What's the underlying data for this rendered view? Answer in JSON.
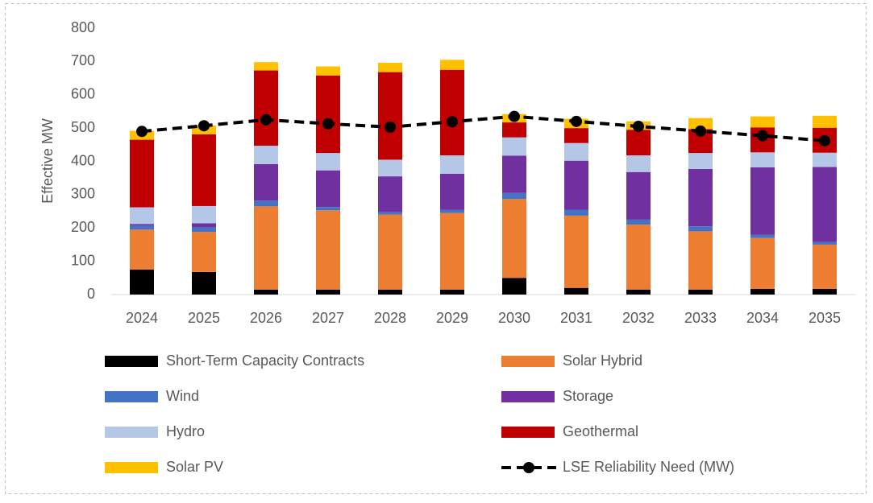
{
  "chart_data": {
    "type": "bar",
    "stacked": true,
    "grid": false,
    "y_label": "Effective MW",
    "categories": [
      "2024",
      "2025",
      "2026",
      "2027",
      "2028",
      "2029",
      "2030",
      "2031",
      "2032",
      "2033",
      "2034",
      "2035"
    ],
    "ylim": [
      0,
      800
    ],
    "yticks": [
      0,
      100,
      200,
      300,
      400,
      500,
      600,
      700,
      800
    ],
    "series": [
      {
        "name": "Short-Term Capacity Contracts",
        "color": "#000000",
        "values": [
          75,
          68,
          15,
          15,
          15,
          15,
          50,
          20,
          15,
          15,
          17,
          17
        ]
      },
      {
        "name": "Solar Hybrid",
        "color": "#ed7d31",
        "values": [
          120,
          120,
          250,
          238,
          225,
          230,
          237,
          217,
          195,
          175,
          153,
          133
        ]
      },
      {
        "name": "Wind",
        "color": "#4472c4",
        "values": [
          12,
          14,
          17,
          10,
          8,
          10,
          18,
          18,
          15,
          15,
          10,
          8
        ]
      },
      {
        "name": "Storage",
        "color": "#7030a0",
        "values": [
          5,
          12,
          110,
          110,
          107,
          108,
          112,
          147,
          143,
          172,
          202,
          225
        ]
      },
      {
        "name": "Hydro",
        "color": "#b4c7e7",
        "values": [
          50,
          52,
          55,
          52,
          50,
          55,
          55,
          53,
          50,
          48,
          45,
          43
        ]
      },
      {
        "name": "Geothermal",
        "color": "#c00000",
        "values": [
          203,
          215,
          226,
          233,
          263,
          257,
          45,
          45,
          77,
          72,
          75,
          75
        ]
      },
      {
        "name": "Solar PV",
        "color": "#ffc000",
        "values": [
          27,
          27,
          25,
          27,
          28,
          30,
          25,
          28,
          25,
          33,
          33,
          36
        ]
      },
      {
        "name": "LSE Reliability Need (MW)",
        "color": "#000000",
        "type": "line",
        "values": [
          490,
          507,
          525,
          513,
          503,
          519,
          535,
          520,
          505,
          491,
          477,
          462
        ]
      }
    ]
  }
}
